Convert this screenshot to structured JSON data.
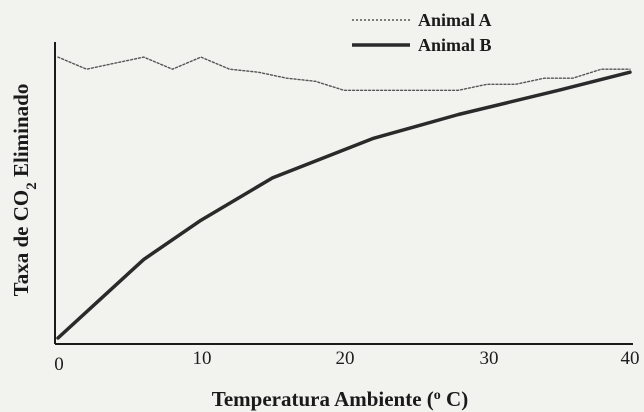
{
  "chart_data": {
    "type": "line",
    "title": "",
    "xlabel": "Temperatura Ambiente (° C)",
    "xlabel_parts": {
      "main": "Temperatura Ambiente (",
      "sup": "o",
      "tail": " C)"
    },
    "ylabel": "Taxa de CO2 Eliminado",
    "ylabel_parts": {
      "main": "Taxa de CO",
      "sub": "2",
      "tail": " Eliminado"
    },
    "xlim": [
      0,
      40
    ],
    "ylim": [
      0,
      100
    ],
    "y_ticks_shown": false,
    "x_ticks": [
      0,
      10,
      20,
      30,
      40
    ],
    "x_tick_labels": [
      "0",
      "10",
      "20",
      "30",
      "40"
    ],
    "grid": false,
    "legend_position": "top-right",
    "series": [
      {
        "name": "Animal A",
        "style": "dotted",
        "color": "#555555",
        "x": [
          0,
          2,
          4,
          6,
          8,
          10,
          12,
          14,
          16,
          18,
          20,
          22,
          24,
          26,
          28,
          30,
          32,
          34,
          36,
          38,
          40
        ],
        "y": [
          95,
          91,
          93,
          95,
          91,
          95,
          91,
          90,
          88,
          87,
          84,
          84,
          84,
          84,
          84,
          86,
          86,
          88,
          88,
          91,
          91
        ]
      },
      {
        "name": "Animal B",
        "style": "solid",
        "color": "#2a2a2a",
        "x": [
          0,
          3,
          6,
          10,
          15,
          22,
          28,
          35,
          40
        ],
        "y": [
          2,
          15,
          28,
          41,
          55,
          68,
          76,
          84,
          90
        ]
      }
    ]
  }
}
